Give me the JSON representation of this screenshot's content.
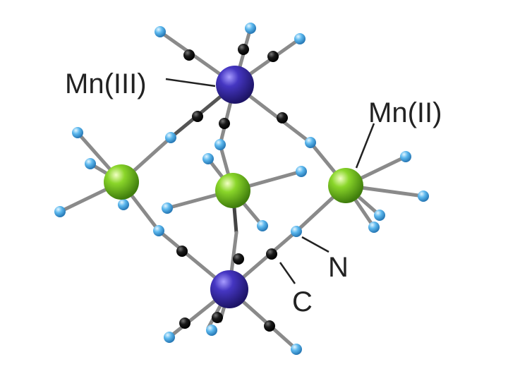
{
  "labels": {
    "mn3": "Mn(III)",
    "mn2": "Mn(II)",
    "n": "N",
    "c": "C"
  },
  "colors": {
    "mn3": "#3b2fa8",
    "mn2": "#7fd11e",
    "nitrogen": "#5cb8ee",
    "carbon": "#111111",
    "bond": "#8a8a8a",
    "leader": "#222222"
  }
}
